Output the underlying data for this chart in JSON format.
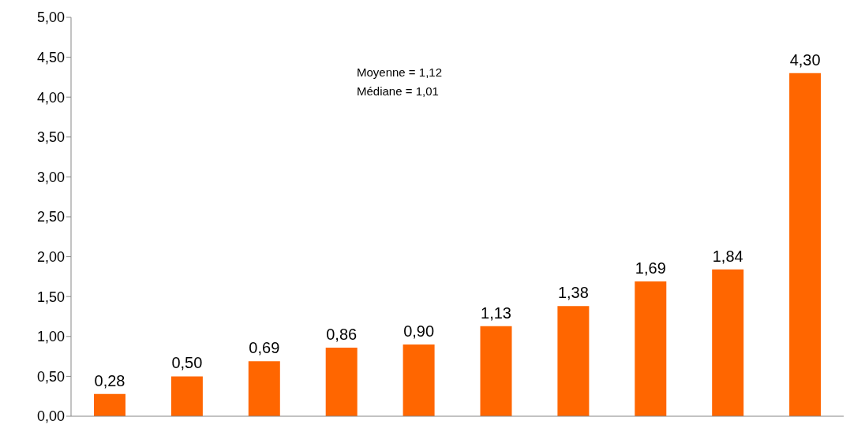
{
  "chart_data": {
    "type": "bar",
    "categories": [
      null,
      null,
      null,
      null,
      null,
      null,
      null,
      null,
      null,
      null
    ],
    "values": [
      0.28,
      0.5,
      0.69,
      0.86,
      0.9,
      1.13,
      1.38,
      1.69,
      1.84,
      4.3
    ],
    "value_labels": [
      "0,28",
      "0,50",
      "0,69",
      "0,86",
      "0,90",
      "1,13",
      "1,38",
      "1,69",
      "1,84",
      "4,30"
    ],
    "color": "#ff6600",
    "ylim": [
      0,
      5
    ],
    "yticks": [
      {
        "value": 0,
        "label": "0,00"
      },
      {
        "value": 0.5,
        "label": "0,50"
      },
      {
        "value": 1,
        "label": "1,00"
      },
      {
        "value": 1.5,
        "label": "1,50"
      },
      {
        "value": 2,
        "label": "2,00"
      },
      {
        "value": 2.5,
        "label": "2,50"
      },
      {
        "value": 3,
        "label": "3,00"
      },
      {
        "value": 3.5,
        "label": "3,50"
      },
      {
        "value": 4,
        "label": "4,00"
      },
      {
        "value": 4.5,
        "label": "4,50"
      },
      {
        "value": 5,
        "label": "5,00"
      }
    ],
    "grid": false,
    "annotations": [
      "Moyenne = 1,12",
      "Médiane = 1,01"
    ]
  }
}
